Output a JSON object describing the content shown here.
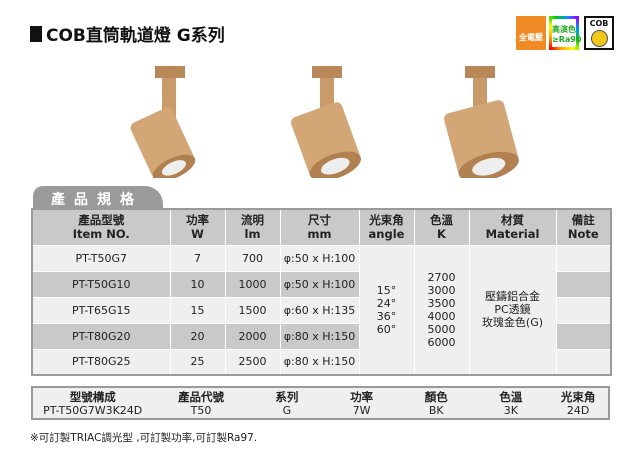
{
  "title": "COB直筒軌道燈 G系列",
  "badges": [
    {
      "icon": "full-voltage-icon",
      "label": "全電壓"
    },
    {
      "icon": "high-cri-icon",
      "label": "高演色 ≥Ra90"
    },
    {
      "icon": "cob-icon",
      "label": "COB"
    }
  ],
  "colors": {
    "lamp": "#c99a6a",
    "header": "#c9c9c9",
    "row_light": "#efefef",
    "badge_orange": "#f08a24"
  },
  "section_tab": "產品規格",
  "table": {
    "headers": [
      [
        "產品型號",
        "Item NO."
      ],
      [
        "功率",
        "W"
      ],
      [
        "流明",
        "lm"
      ],
      [
        "尺寸",
        "mm"
      ],
      [
        "光束角",
        "angle"
      ],
      [
        "色溫",
        "K"
      ],
      [
        "材質",
        "Material"
      ],
      [
        "備註",
        "Note"
      ]
    ],
    "rows": [
      [
        "PT-T50G7",
        "7",
        "700",
        "φ:50 x H:100"
      ],
      [
        "PT-T50G10",
        "10",
        "1000",
        "φ:50 x H:100"
      ],
      [
        "PT-T65G15",
        "15",
        "1500",
        "φ:60 x H:135"
      ],
      [
        "PT-T80G20",
        "20",
        "2000",
        "φ:80 x H:150"
      ],
      [
        "PT-T80G25",
        "25",
        "2500",
        "φ:80 x H:150"
      ]
    ],
    "angles": [
      "15°",
      "24°",
      "36°",
      "60°"
    ],
    "cct": [
      "2700",
      "3000",
      "3500",
      "4000",
      "5000",
      "6000"
    ],
    "material": [
      "壓鑄鋁合金",
      "PC透鏡",
      "玫瑰金色(G)"
    ]
  },
  "model_code": {
    "headers": [
      "型號構成",
      "產品代號",
      "系列",
      "功率",
      "顏色",
      "色溫",
      "光束角"
    ],
    "values": [
      "PT-T50G7W3K24D",
      "T50",
      "G",
      "7W",
      "BK",
      "3K",
      "24D"
    ]
  },
  "footnote": "※可訂製TRIAC調光型 ,可訂製功率,可訂製Ra97."
}
